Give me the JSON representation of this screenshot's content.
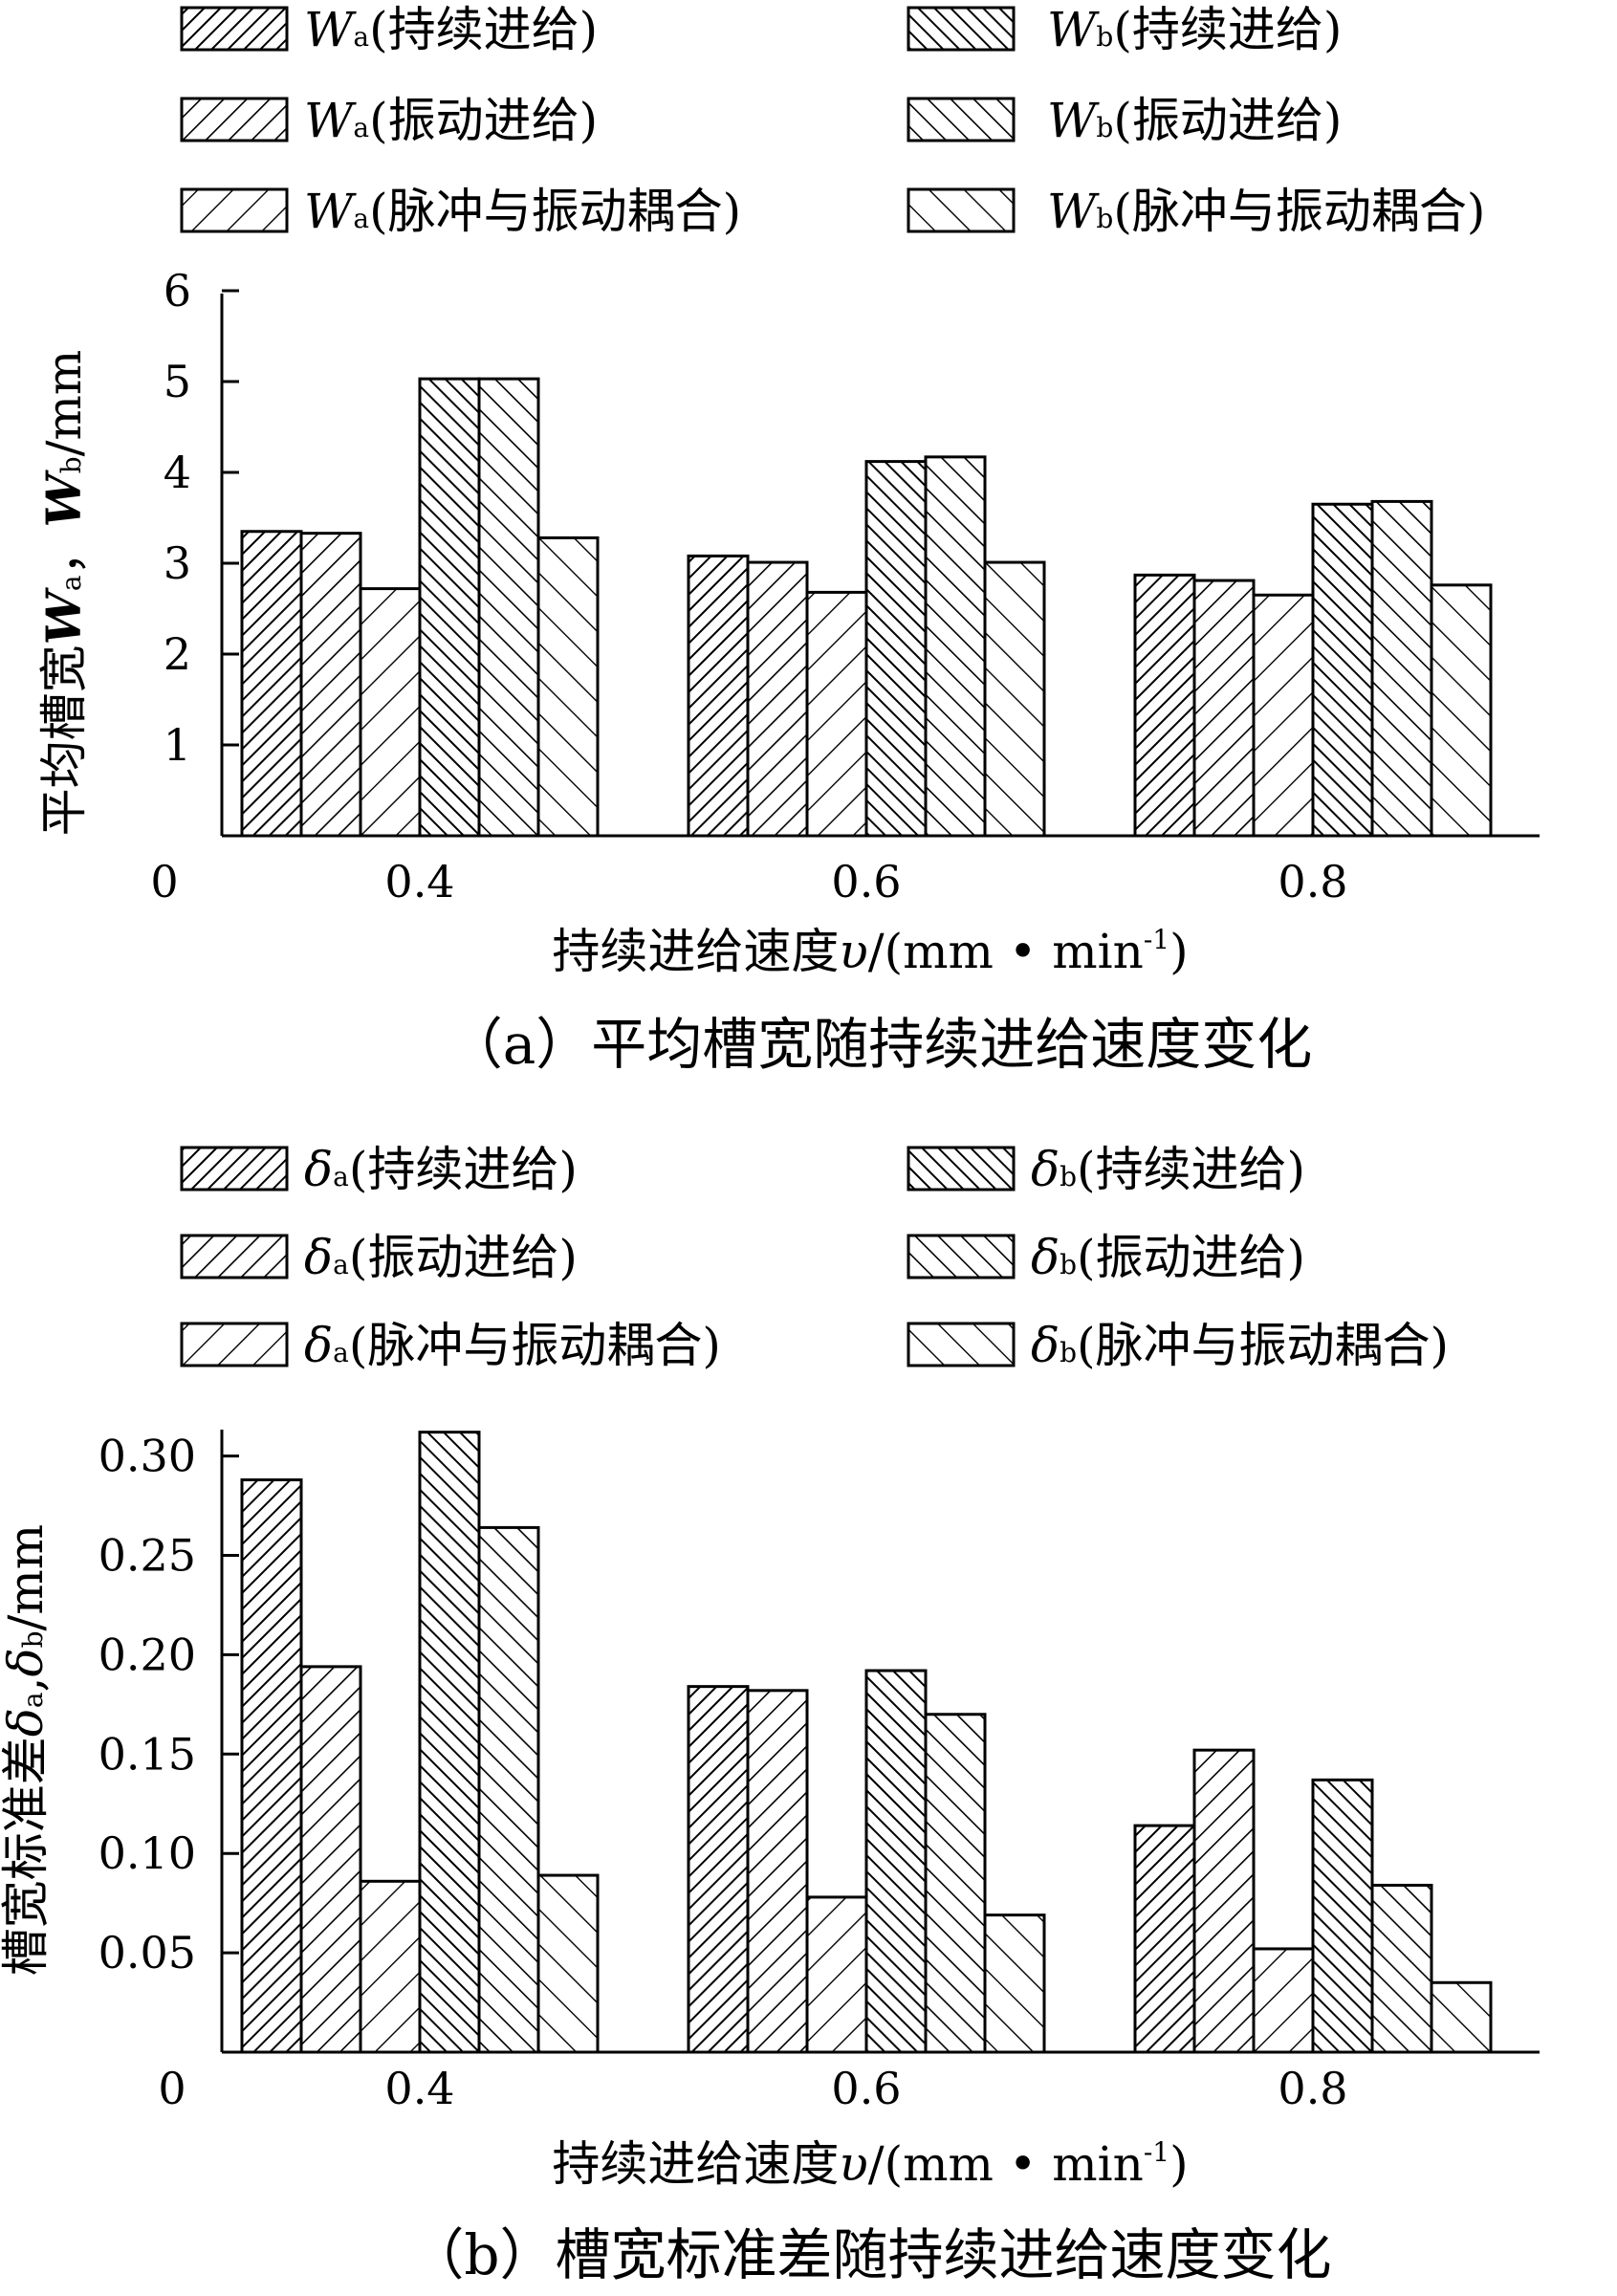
{
  "chart_data": [
    {
      "type": "bar",
      "title": "（a）平均槽宽随持续进给速度变化",
      "xlabel_main": "持续进给速度",
      "xlabel_var": "υ",
      "xlabel_unit": "/(mm • min",
      "xlabel_sup": "-1",
      "xlabel_close": ")",
      "ylabel_main": "平均槽宽",
      "ylabel_s1": "W",
      "ylabel_s1_sub": "a",
      "ylabel_sep": "，",
      "ylabel_s2": "W",
      "ylabel_s2_sub": "b",
      "ylabel_unit": "/mm",
      "categories": [
        "0.4",
        "0.6",
        "0.8"
      ],
      "origin_label": "0",
      "ylim": [
        0,
        6
      ],
      "yticks": [
        1,
        2,
        3,
        4,
        5,
        6
      ],
      "ytick_labels": [
        "1",
        "2",
        "3",
        "4",
        "5",
        "6"
      ],
      "series": [
        {
          "sym": "W",
          "sub": "a",
          "name": "(持续进给)",
          "values": [
            3.35,
            3.08,
            2.87
          ],
          "pattern": "dense-fwd"
        },
        {
          "sym": "W",
          "sub": "a",
          "name": "(振动进给)",
          "values": [
            3.33,
            3.01,
            2.81
          ],
          "pattern": "med-fwd"
        },
        {
          "sym": "W",
          "sub": "a",
          "name": "(脉冲与振动耦合)",
          "values": [
            2.72,
            2.68,
            2.65
          ],
          "pattern": "sparse-fwd"
        },
        {
          "sym": "W",
          "sub": "b",
          "name": "(持续进给)",
          "values": [
            5.03,
            4.12,
            3.65
          ],
          "pattern": "dense-back"
        },
        {
          "sym": "W",
          "sub": "b",
          "name": "(振动进给)",
          "values": [
            5.03,
            4.17,
            3.68
          ],
          "pattern": "med-back"
        },
        {
          "sym": "W",
          "sub": "b",
          "name": "(脉冲与振动耦合)",
          "values": [
            3.28,
            3.01,
            2.76
          ],
          "pattern": "sparse-back"
        }
      ],
      "legend_placement": "top",
      "grid": false
    },
    {
      "type": "bar",
      "title": "（b）槽宽标准差随持续进给速度变化",
      "xlabel_main": "持续进给速度",
      "xlabel_var": "υ",
      "xlabel_unit": "/(mm • min",
      "xlabel_sup": "-1",
      "xlabel_close": ")",
      "ylabel_main": "槽宽标准差",
      "ylabel_s1": "δ",
      "ylabel_s1_sub": "a",
      "ylabel_sep": ",",
      "ylabel_s2": "δ",
      "ylabel_s2_sub": "b",
      "ylabel_unit": "/mm",
      "categories": [
        "0.4",
        "0.6",
        "0.8"
      ],
      "origin_label": "0",
      "ylim": [
        0,
        0.31
      ],
      "yticks": [
        0.05,
        0.1,
        0.15,
        0.2,
        0.25,
        0.3
      ],
      "ytick_labels": [
        "0.05",
        "0.10",
        "0.15",
        "0.20",
        "0.25",
        "0.30"
      ],
      "series": [
        {
          "sym": "δ",
          "sub": "a",
          "name": "(持续进给)",
          "values": [
            0.288,
            0.184,
            0.114
          ],
          "pattern": "dense-fwd"
        },
        {
          "sym": "δ",
          "sub": "a",
          "name": "(振动进给)",
          "values": [
            0.194,
            0.182,
            0.152
          ],
          "pattern": "med-fwd"
        },
        {
          "sym": "δ",
          "sub": "a",
          "name": "(脉冲与振动耦合)",
          "values": [
            0.086,
            0.078,
            0.052
          ],
          "pattern": "sparse-fwd"
        },
        {
          "sym": "δ",
          "sub": "b",
          "name": "(持续进给)",
          "values": [
            0.312,
            0.192,
            0.137
          ],
          "pattern": "dense-back"
        },
        {
          "sym": "δ",
          "sub": "b",
          "name": "(振动进给)",
          "values": [
            0.264,
            0.17,
            0.084
          ],
          "pattern": "med-back"
        },
        {
          "sym": "δ",
          "sub": "b",
          "name": "(脉冲与振动耦合)",
          "values": [
            0.089,
            0.069,
            0.035
          ],
          "pattern": "sparse-back"
        }
      ],
      "legend_placement": "top",
      "grid": false
    }
  ]
}
